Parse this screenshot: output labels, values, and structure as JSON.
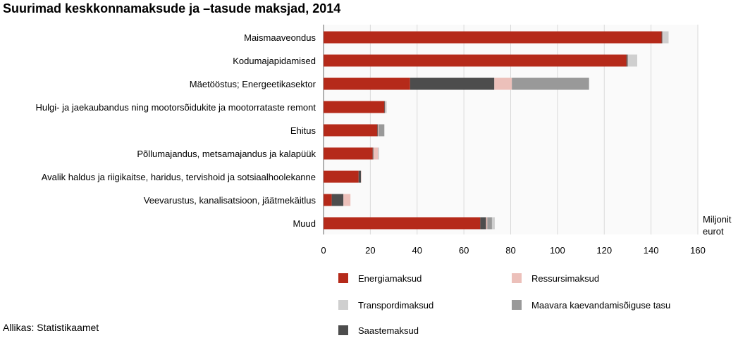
{
  "title": "Suurimad keskkonnamaksude ja –tasude maksjad, 2014",
  "source": "Allikas: Statistikaamet",
  "colors": {
    "energiamaksud": "#b52a1a",
    "saastemaksud": "#4d4d4d",
    "ressursimaksud": "#ecc0ba",
    "maavara": "#999999",
    "transpordimaksud": "#cfcfcf",
    "grid": "#d9d9d9",
    "panel": "#fafafa"
  },
  "chart_data": {
    "type": "bar",
    "orientation": "horizontal",
    "stacked": true,
    "title": "Suurimad keskkonnamaksude ja –tasude maksjad, 2014",
    "unit_label": [
      "Miljonit",
      "eurot"
    ],
    "xlim": [
      0,
      160
    ],
    "xticks": [
      0,
      20,
      40,
      60,
      80,
      100,
      120,
      140,
      160
    ],
    "grid": true,
    "legend_position": "bottom",
    "categories": [
      "Maismaaveondus",
      "Kodumajapidamised",
      "Mäetööstus; Energeetikasektor",
      "Hulgi- ja jaekaubandus ning mootorsõidukite ja mootorrataste remont",
      "Ehitus",
      "Põllumajandus, metsamajandus ja kalapüük",
      "Avalik haldus ja riigikaitse, haridus, tervishoid ja sotsiaalhoolekanne",
      "Veevarustus, kanalisatsioon, jäätmekäitlus",
      "Muud"
    ],
    "series": [
      {
        "name": "Energiamaksud",
        "color_key": "energiamaksud",
        "values": [
          144.5,
          129.5,
          37,
          26,
          23,
          21,
          15,
          3.5,
          67
        ]
      },
      {
        "name": "Saastemaksud",
        "color_key": "saastemaksud",
        "values": [
          0.3,
          0.5,
          36,
          0.3,
          0.2,
          0.3,
          1,
          5,
          2.5
        ]
      },
      {
        "name": "Ressursimaksud",
        "color_key": "ressursimaksud",
        "values": [
          0.2,
          0.1,
          7.5,
          0.2,
          0.3,
          2,
          0.2,
          3,
          0.5
        ]
      },
      {
        "name": "Maavara kaevandamisõiguse tasu",
        "color_key": "maavara",
        "values": [
          0,
          0,
          33,
          0,
          2.5,
          0,
          0,
          0,
          2
        ]
      },
      {
        "name": "Transpordimaksud",
        "color_key": "transpordimaksud",
        "values": [
          2.5,
          4,
          0,
          0.5,
          0,
          0.5,
          0,
          0,
          1.2
        ]
      }
    ],
    "legend": [
      {
        "label": "Energiamaksud",
        "color_key": "energiamaksud"
      },
      {
        "label": "Ressursimaksud",
        "color_key": "ressursimaksud"
      },
      {
        "label": "Transpordimaksud",
        "color_key": "transpordimaksud"
      },
      {
        "label": "Maavara kaevandamisõiguse tasu",
        "color_key": "maavara"
      },
      {
        "label": "Saastemaksud",
        "color_key": "saastemaksud"
      }
    ]
  }
}
